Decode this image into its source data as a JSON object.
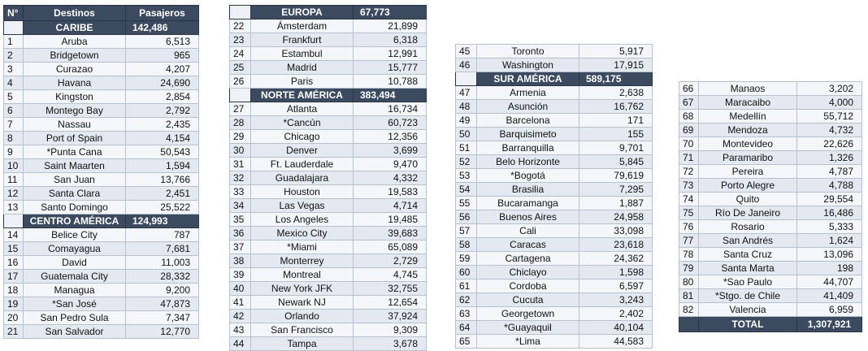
{
  "headers": {
    "num": "N°",
    "dest": "Destinos",
    "pax": "Pasajeros"
  },
  "caribe": {
    "label": "CARIBE",
    "total": "142,486"
  },
  "centro": {
    "label": "CENTRO AMÉRICA",
    "total": "124,993"
  },
  "europa": {
    "label": "EUROPA",
    "total": "67,773"
  },
  "norte": {
    "label": "NORTE AMÉRICA",
    "total": "383,494"
  },
  "sur": {
    "label": "SUR AMÉRICA",
    "total": "589,175"
  },
  "total": {
    "label": "TOTAL",
    "value": "1,307,921"
  },
  "table1": [
    [
      "1",
      "Aruba",
      "6,513"
    ],
    [
      "2",
      "Bridgetown",
      "965"
    ],
    [
      "3",
      "Curazao",
      "4,207"
    ],
    [
      "4",
      "Havana",
      "24,690"
    ],
    [
      "5",
      "Kingston",
      "2,854"
    ],
    [
      "6",
      "Montego Bay",
      "2,792"
    ],
    [
      "7",
      "Nassau",
      "2,435"
    ],
    [
      "8",
      "Port of Spain",
      "4,154"
    ],
    [
      "9",
      "*Punta Cana",
      "50,543"
    ],
    [
      "10",
      "Saint Maarten",
      "1,594"
    ],
    [
      "11",
      "San Juan",
      "13,766"
    ],
    [
      "12",
      "Santa Clara",
      "2,451"
    ],
    [
      "13",
      "Santo Domingo",
      "25,522"
    ]
  ],
  "table1b": [
    [
      "14",
      "Belice City",
      "787"
    ],
    [
      "15",
      "Comayagua",
      "7,681"
    ],
    [
      "16",
      "David",
      "11,003"
    ],
    [
      "17",
      "Guatemala City",
      "28,332"
    ],
    [
      "18",
      "Managua",
      "9,200"
    ],
    [
      "19",
      "*San José",
      "47,873"
    ],
    [
      "20",
      "San Pedro Sula",
      "7,347"
    ],
    [
      "21",
      "San Salvador",
      "12,770"
    ]
  ],
  "table2": [
    [
      "22",
      "Ámsterdam",
      "21,899"
    ],
    [
      "23",
      "Frankfurt",
      "6,318"
    ],
    [
      "24",
      "Estambul",
      "12,991"
    ],
    [
      "25",
      "Madrid",
      "15,777"
    ],
    [
      "26",
      "Paris",
      "10,788"
    ]
  ],
  "table2b": [
    [
      "27",
      "Atlanta",
      "16,734"
    ],
    [
      "28",
      "*Cancún",
      "60,723"
    ],
    [
      "29",
      "Chicago",
      "12,356"
    ],
    [
      "30",
      "Denver",
      "3,699"
    ],
    [
      "31",
      "Ft. Lauderdale",
      "9,470"
    ],
    [
      "32",
      "Guadalajara",
      "4,332"
    ],
    [
      "33",
      "Houston",
      "19,583"
    ],
    [
      "34",
      "Las Vegas",
      "4,714"
    ],
    [
      "35",
      "Los Angeles",
      "19,485"
    ],
    [
      "36",
      "Mexico City",
      "39,683"
    ],
    [
      "37",
      "*Miami",
      "65,089"
    ],
    [
      "38",
      "Monterrey",
      "2,729"
    ],
    [
      "39",
      "Montreal",
      "4,745"
    ],
    [
      "40",
      "New York JFK",
      "32,755"
    ],
    [
      "41",
      "Newark NJ",
      "12,654"
    ],
    [
      "42",
      "Orlando",
      "37,924"
    ],
    [
      "43",
      "San Francisco",
      "9,309"
    ],
    [
      "44",
      "Tampa",
      "3,678"
    ]
  ],
  "table3a": [
    [
      "45",
      "Toronto",
      "5,917"
    ],
    [
      "46",
      "Washington",
      "17,915"
    ]
  ],
  "table3b": [
    [
      "47",
      "Armenia",
      "2,638"
    ],
    [
      "48",
      "Asunción",
      "16,762"
    ],
    [
      "49",
      "Barcelona",
      "171"
    ],
    [
      "50",
      "Barquisimeto",
      "155"
    ],
    [
      "51",
      "Barranquilla",
      "9,701"
    ],
    [
      "52",
      "Belo Horizonte",
      "5,845"
    ],
    [
      "53",
      "*Bogotá",
      "79,619"
    ],
    [
      "54",
      "Brasilia",
      "7,295"
    ],
    [
      "55",
      "Bucaramanga",
      "1,887"
    ],
    [
      "56",
      "Buenos Aires",
      "24,958"
    ],
    [
      "57",
      "Cali",
      "33,098"
    ],
    [
      "58",
      "Caracas",
      "23,618"
    ],
    [
      "59",
      "Cartagena",
      "24,362"
    ],
    [
      "60",
      "Chiclayo",
      "1,598"
    ],
    [
      "61",
      "Cordoba",
      "6,597"
    ],
    [
      "62",
      "Cucuta",
      "3,243"
    ],
    [
      "63",
      "Georgetown",
      "2,402"
    ],
    [
      "64",
      "*Guayaquil",
      "40,104"
    ],
    [
      "65",
      "*Lima",
      "44,583"
    ]
  ],
  "table4": [
    [
      "66",
      "Manaos",
      "3,202"
    ],
    [
      "67",
      "Maracaibo",
      "4,000"
    ],
    [
      "68",
      "Medellín",
      "55,712"
    ],
    [
      "69",
      "Mendoza",
      "4,732"
    ],
    [
      "70",
      "Montevideo",
      "22,626"
    ],
    [
      "71",
      "Paramaribo",
      "1,326"
    ],
    [
      "72",
      "Pereira",
      "4,787"
    ],
    [
      "73",
      "Porto Alegre",
      "4,788"
    ],
    [
      "74",
      "Quito",
      "29,554"
    ],
    [
      "75",
      "Río De Janeiro",
      "16,486"
    ],
    [
      "76",
      "Rosario",
      "5,333"
    ],
    [
      "77",
      "San Andrés",
      "1,624"
    ],
    [
      "78",
      "Santa Cruz",
      "13,096"
    ],
    [
      "79",
      "Santa Marta",
      "198"
    ],
    [
      "80",
      "*Sao Paulo",
      "44,707"
    ],
    [
      "81",
      "*Stgo. de Chile",
      "41,409"
    ],
    [
      "82",
      "Valencia",
      "6,959"
    ]
  ]
}
